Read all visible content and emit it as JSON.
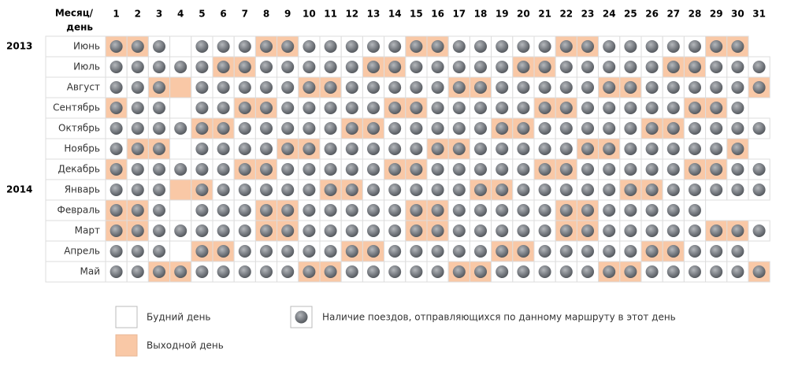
{
  "header_label": [
    "Месяц/",
    "день"
  ],
  "day_headers": [
    1,
    2,
    3,
    4,
    5,
    6,
    7,
    8,
    9,
    10,
    11,
    12,
    13,
    14,
    15,
    16,
    17,
    18,
    19,
    20,
    21,
    22,
    23,
    24,
    25,
    26,
    27,
    28,
    29,
    30,
    31
  ],
  "rows": [
    {
      "year": "2013",
      "month": "Июнь",
      "day_count": 30,
      "weekend_days": [
        1,
        2,
        8,
        9,
        15,
        16,
        22,
        23,
        29,
        30
      ],
      "no_train_days": [
        4
      ]
    },
    {
      "month": "Июль",
      "day_count": 31,
      "weekend_days": [
        6,
        7,
        13,
        14,
        20,
        21,
        27,
        28
      ],
      "no_train_days": []
    },
    {
      "month": "Август",
      "day_count": 31,
      "weekend_days": [
        3,
        4,
        10,
        11,
        17,
        18,
        24,
        25,
        31
      ],
      "no_train_days": [
        4
      ]
    },
    {
      "month": "Сентябрь",
      "day_count": 30,
      "weekend_days": [
        1,
        7,
        8,
        14,
        15,
        21,
        22,
        28,
        29
      ],
      "no_train_days": [
        4
      ]
    },
    {
      "month": "Октябрь",
      "day_count": 31,
      "weekend_days": [
        5,
        6,
        12,
        13,
        19,
        20,
        26,
        27
      ],
      "no_train_days": []
    },
    {
      "month": "Ноябрь",
      "day_count": 30,
      "weekend_days": [
        2,
        3,
        9,
        10,
        16,
        17,
        23,
        24,
        30
      ],
      "no_train_days": [
        4
      ]
    },
    {
      "month": "Декабрь",
      "day_count": 31,
      "weekend_days": [
        1,
        7,
        8,
        14,
        15,
        21,
        22,
        28,
        29
      ],
      "no_train_days": []
    },
    {
      "year": "2014",
      "month": "Январь",
      "day_count": 31,
      "weekend_days": [
        4,
        5,
        11,
        12,
        18,
        19,
        25,
        26
      ],
      "no_train_days": [
        4
      ]
    },
    {
      "month": "Февраль",
      "day_count": 28,
      "weekend_days": [
        1,
        2,
        8,
        9,
        15,
        16,
        22,
        23
      ],
      "no_train_days": [
        4
      ]
    },
    {
      "month": "Март",
      "day_count": 31,
      "weekend_days": [
        1,
        2,
        8,
        9,
        15,
        16,
        22,
        23,
        29,
        30
      ],
      "no_train_days": []
    },
    {
      "month": "Апрель",
      "day_count": 30,
      "weekend_days": [
        5,
        6,
        12,
        13,
        19,
        20,
        26,
        27
      ],
      "no_train_days": [
        4
      ]
    },
    {
      "month": "Май",
      "day_count": 31,
      "weekend_days": [
        3,
        4,
        10,
        11,
        17,
        18,
        24,
        25,
        31
      ],
      "no_train_days": []
    }
  ],
  "legend": {
    "weekday": "Будний день",
    "weekend": "Выходной день",
    "train": "Наличие поездов, отправляющихся по данному маршруту в этот день"
  }
}
